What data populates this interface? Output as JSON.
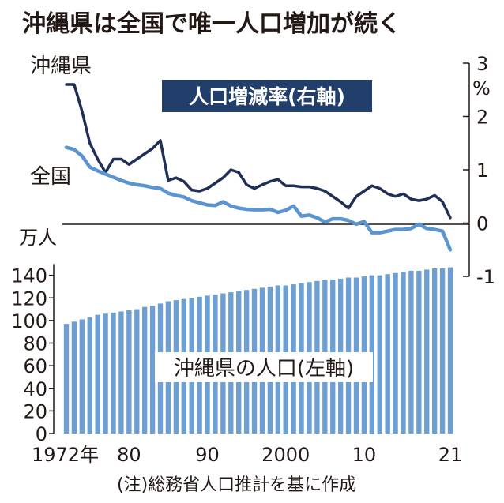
{
  "title": "沖縄県は全国で唯一人口増加が続く",
  "note": "(注)総務省人口推計を基に作成",
  "legend_line_okinawa": "沖縄県",
  "legend_line_japan": "全国",
  "legend_rate_box": "人口増減率(右軸)",
  "legend_bars": "沖縄県の人口(左軸)",
  "left_axis_unit": "万人",
  "right_axis_unit": "%",
  "x_tick_labels": [
    "1972年",
    "80",
    "90",
    "2000",
    "10",
    "21"
  ],
  "colors": {
    "okinawa_line": "#1f2f55",
    "japan_line": "#5b95cf",
    "bars": "#6d9fd3",
    "label_box": "#223e6b",
    "text": "#231815"
  },
  "chart_data": [
    {
      "type": "line",
      "title": "人口増減率(右軸)",
      "axis": "right",
      "ylabel": "%",
      "ylim": [
        -1,
        3
      ],
      "yticks": [
        3,
        2,
        1,
        0,
        -1
      ],
      "x": [
        1972,
        1973,
        1974,
        1975,
        1976,
        1977,
        1978,
        1979,
        1980,
        1981,
        1982,
        1983,
        1984,
        1985,
        1986,
        1987,
        1988,
        1989,
        1990,
        1991,
        1992,
        1993,
        1994,
        1995,
        1996,
        1997,
        1998,
        1999,
        2000,
        2001,
        2002,
        2003,
        2004,
        2005,
        2006,
        2007,
        2008,
        2009,
        2010,
        2011,
        2012,
        2013,
        2014,
        2015,
        2016,
        2017,
        2018,
        2019,
        2020,
        2021
      ],
      "series": [
        {
          "name": "沖縄県",
          "values": [
            2.6,
            2.6,
            2.1,
            1.5,
            1.2,
            0.95,
            1.2,
            1.2,
            1.1,
            1.2,
            1.3,
            1.4,
            1.55,
            0.8,
            0.85,
            0.78,
            0.62,
            0.6,
            0.65,
            0.75,
            0.85,
            1.0,
            0.95,
            0.72,
            0.65,
            0.72,
            0.78,
            0.82,
            0.7,
            0.7,
            0.68,
            0.68,
            0.65,
            0.6,
            0.5,
            0.4,
            0.28,
            0.5,
            0.6,
            0.7,
            0.65,
            0.55,
            0.5,
            0.55,
            0.45,
            0.42,
            0.45,
            0.52,
            0.4,
            0.1
          ]
        },
        {
          "name": "全国",
          "values": [
            1.42,
            1.38,
            1.26,
            1.05,
            0.98,
            0.92,
            0.86,
            0.8,
            0.75,
            0.72,
            0.7,
            0.67,
            0.65,
            0.56,
            0.52,
            0.49,
            0.42,
            0.38,
            0.34,
            0.33,
            0.4,
            0.32,
            0.28,
            0.26,
            0.25,
            0.25,
            0.26,
            0.2,
            0.24,
            0.32,
            0.13,
            0.15,
            0.1,
            0.02,
            0.08,
            0.08,
            0.05,
            -0.02,
            0.03,
            -0.18,
            -0.18,
            -0.15,
            -0.12,
            -0.12,
            -0.1,
            -0.02,
            -0.1,
            -0.12,
            -0.15,
            -0.5
          ]
        }
      ]
    },
    {
      "type": "bar",
      "title": "沖縄県の人口(左軸)",
      "axis": "left",
      "ylabel": "万人",
      "ylim": [
        0,
        160
      ],
      "yticks": [
        0,
        20,
        40,
        60,
        80,
        100,
        120,
        140
      ],
      "categories": [
        1972,
        1973,
        1974,
        1975,
        1976,
        1977,
        1978,
        1979,
        1980,
        1981,
        1982,
        1983,
        1984,
        1985,
        1986,
        1987,
        1988,
        1989,
        1990,
        1991,
        1992,
        1993,
        1994,
        1995,
        1996,
        1997,
        1998,
        1999,
        2000,
        2001,
        2002,
        2003,
        2004,
        2005,
        2006,
        2007,
        2008,
        2009,
        2010,
        2011,
        2012,
        2013,
        2014,
        2015,
        2016,
        2017,
        2018,
        2019,
        2020,
        2021
      ],
      "values": [
        97,
        99,
        101,
        103,
        105,
        106,
        107,
        108,
        109,
        110,
        112,
        113,
        115,
        117,
        118,
        119,
        120,
        121,
        122,
        123,
        124,
        125,
        126,
        127,
        128,
        129,
        130,
        131,
        131,
        132,
        133,
        134,
        135,
        136,
        136,
        137,
        138,
        138,
        139,
        140,
        140,
        141,
        142,
        143,
        144,
        144,
        145,
        146,
        146,
        147
      ]
    }
  ]
}
